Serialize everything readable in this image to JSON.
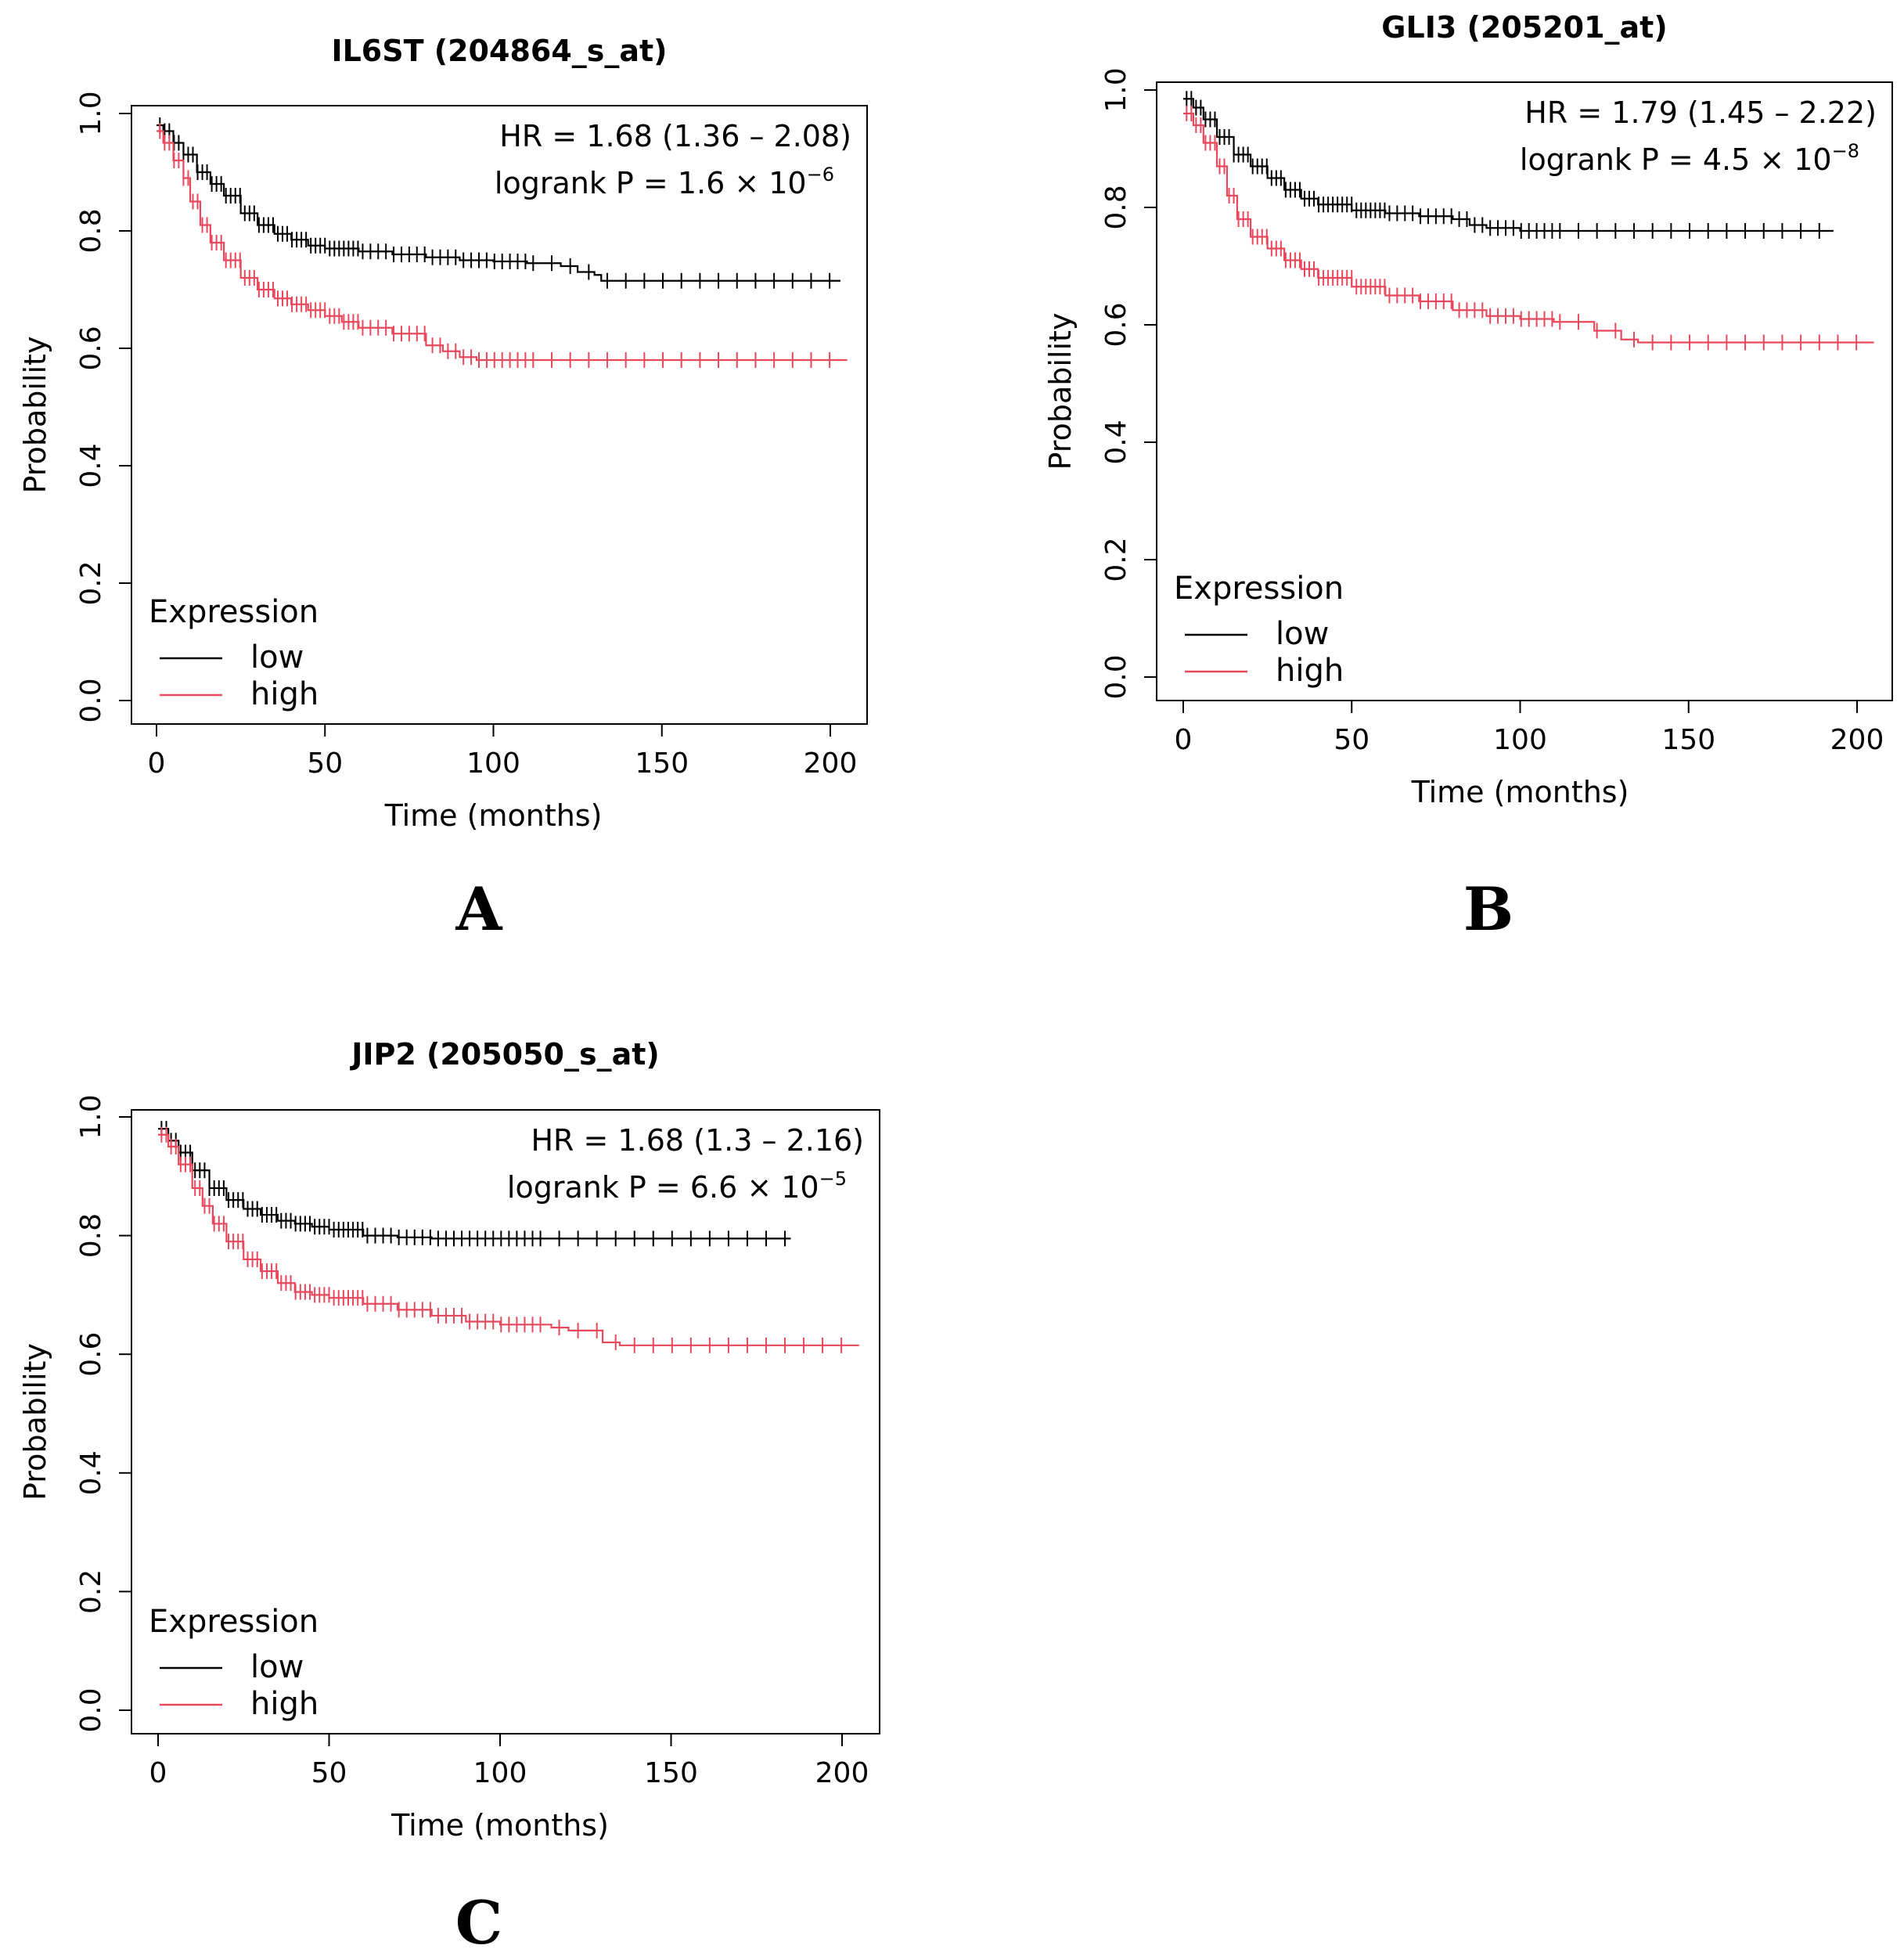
{
  "panel_letters": [
    "A",
    "B",
    "C"
  ],
  "colors": {
    "low": "#000000",
    "high": "#e8485c"
  },
  "chart_data": [
    {
      "type": "line",
      "title": "IL6ST (204864_s_at)",
      "xlabel": "Time (months)",
      "ylabel": "Probability",
      "xlim": [
        0,
        200
      ],
      "ylim": [
        0,
        1
      ],
      "x_ticks": [
        "0",
        "50",
        "100",
        "150",
        "200"
      ],
      "y_ticks": [
        "0.0",
        "0.2",
        "0.4",
        "0.6",
        "0.8",
        "1.0"
      ],
      "hr_text": "HR = 1.68 (1.36 – 2.08)",
      "logrank_text": "logrank  P = 1.6 × 10",
      "logrank_exp": "−6",
      "legend": {
        "title": "Expression",
        "position": "bottom-left"
      },
      "series": [
        {
          "name": "low",
          "x": [
            0,
            2,
            5,
            8,
            12,
            16,
            20,
            25,
            30,
            35,
            40,
            45,
            50,
            60,
            70,
            80,
            90,
            100,
            110,
            120,
            125,
            130,
            132,
            150,
            180,
            203
          ],
          "y": [
            0.98,
            0.97,
            0.95,
            0.93,
            0.9,
            0.88,
            0.86,
            0.83,
            0.81,
            0.795,
            0.785,
            0.775,
            0.77,
            0.765,
            0.76,
            0.755,
            0.75,
            0.748,
            0.745,
            0.74,
            0.73,
            0.725,
            0.715,
            0.715,
            0.715,
            0.715
          ]
        },
        {
          "name": "high",
          "x": [
            0,
            2,
            5,
            8,
            10,
            13,
            16,
            20,
            25,
            30,
            35,
            40,
            45,
            50,
            55,
            60,
            70,
            80,
            85,
            90,
            95,
            100,
            150,
            205
          ],
          "y": [
            0.97,
            0.95,
            0.92,
            0.89,
            0.85,
            0.81,
            0.78,
            0.75,
            0.72,
            0.7,
            0.685,
            0.675,
            0.665,
            0.655,
            0.645,
            0.635,
            0.625,
            0.605,
            0.595,
            0.585,
            0.58,
            0.58,
            0.58,
            0.58
          ]
        }
      ]
    },
    {
      "type": "line",
      "title": "GLI3 (205201_at)",
      "xlabel": "Time (months)",
      "ylabel": "Probability",
      "xlim": [
        0,
        200
      ],
      "ylim": [
        0,
        1
      ],
      "x_ticks": [
        "0",
        "50",
        "100",
        "150",
        "200"
      ],
      "y_ticks": [
        "0.0",
        "0.2",
        "0.4",
        "0.6",
        "0.8",
        "1.0"
      ],
      "hr_text": "HR = 1.79 (1.45 – 2.22)",
      "logrank_text": "logrank  P = 4.5 × 10",
      "logrank_exp": "−8",
      "legend": {
        "title": "Expression",
        "position": "bottom-left"
      },
      "series": [
        {
          "name": "low",
          "x": [
            0,
            3,
            6,
            10,
            15,
            20,
            25,
            30,
            35,
            40,
            50,
            60,
            70,
            80,
            85,
            90,
            100,
            130,
            160,
            193
          ],
          "y": [
            0.985,
            0.97,
            0.95,
            0.92,
            0.89,
            0.87,
            0.85,
            0.83,
            0.815,
            0.805,
            0.795,
            0.79,
            0.785,
            0.78,
            0.77,
            0.765,
            0.76,
            0.76,
            0.76,
            0.76
          ]
        },
        {
          "name": "high",
          "x": [
            0,
            3,
            6,
            10,
            13,
            16,
            20,
            25,
            30,
            35,
            40,
            50,
            60,
            70,
            80,
            90,
            100,
            110,
            118,
            122,
            130,
            135,
            170,
            205
          ],
          "y": [
            0.96,
            0.94,
            0.91,
            0.87,
            0.82,
            0.78,
            0.75,
            0.73,
            0.71,
            0.695,
            0.68,
            0.665,
            0.65,
            0.64,
            0.625,
            0.615,
            0.61,
            0.605,
            0.605,
            0.59,
            0.575,
            0.57,
            0.57,
            0.57
          ]
        }
      ]
    },
    {
      "type": "line",
      "title": "JIP2 (205050_s_at)",
      "xlabel": "Time (months)",
      "ylabel": "Probability",
      "xlim": [
        0,
        200
      ],
      "ylim": [
        0,
        1
      ],
      "x_ticks": [
        "0",
        "50",
        "100",
        "150",
        "200"
      ],
      "y_ticks": [
        "0.0",
        "0.2",
        "0.4",
        "0.6",
        "0.8",
        "1.0"
      ],
      "hr_text": "HR = 1.68 (1.3 – 2.16)",
      "logrank_text": "logrank  P = 6.6 × 10",
      "logrank_exp": "−5",
      "legend": {
        "title": "Expression",
        "position": "bottom-left"
      },
      "series": [
        {
          "name": "low",
          "x": [
            0,
            3,
            6,
            10,
            15,
            20,
            25,
            30,
            35,
            40,
            45,
            50,
            60,
            70,
            80,
            100,
            140,
            185
          ],
          "y": [
            0.98,
            0.96,
            0.94,
            0.91,
            0.88,
            0.86,
            0.845,
            0.835,
            0.825,
            0.82,
            0.815,
            0.81,
            0.8,
            0.797,
            0.795,
            0.795,
            0.795,
            0.795
          ]
        },
        {
          "name": "high",
          "x": [
            0,
            3,
            6,
            10,
            13,
            16,
            20,
            25,
            30,
            35,
            40,
            45,
            50,
            60,
            70,
            80,
            90,
            100,
            115,
            120,
            130,
            135,
            170,
            205
          ],
          "y": [
            0.97,
            0.95,
            0.92,
            0.88,
            0.85,
            0.82,
            0.79,
            0.76,
            0.74,
            0.72,
            0.705,
            0.7,
            0.695,
            0.685,
            0.675,
            0.665,
            0.655,
            0.65,
            0.645,
            0.64,
            0.62,
            0.615,
            0.615,
            0.615
          ]
        }
      ]
    }
  ]
}
